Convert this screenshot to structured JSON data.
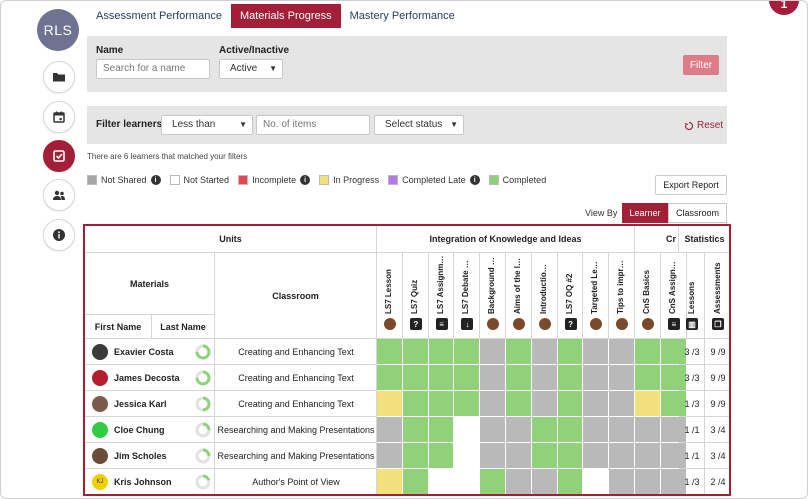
{
  "user": {
    "initials": "RLS"
  },
  "corner_badge": {
    "text": "1"
  },
  "tabs": [
    {
      "label": "Assessment Performance",
      "active": false
    },
    {
      "label": "Materials Progress",
      "active": true
    },
    {
      "label": "Mastery Performance",
      "active": false
    }
  ],
  "filters": {
    "name_label": "Name",
    "name_placeholder": "Search for a name",
    "active_label": "Active/Inactive",
    "active_value": "Active",
    "filter_button": "Filter",
    "learners_label": "Filter learners",
    "comparison_value": "Less than",
    "items_placeholder": "No. of items",
    "status_value": "Select status",
    "reset_label": "Reset"
  },
  "result_text": "There are 6 learners that matched your filters",
  "legend": [
    {
      "label": "Not Shared",
      "color": "#a6a6a6",
      "info": true
    },
    {
      "label": "Not Started",
      "color": "#ffffff",
      "info": false
    },
    {
      "label": "Incomplete",
      "color": "#e8474f",
      "info": true
    },
    {
      "label": "In Progress",
      "color": "#f2e07c",
      "info": false
    },
    {
      "label": "Completed Late",
      "color": "#b27ae8",
      "info": true
    },
    {
      "label": "Completed",
      "color": "#8fd27a",
      "info": false
    }
  ],
  "export_label": "Export Report",
  "view_by": {
    "label": "View By",
    "options": [
      "Learner",
      "Classroom"
    ],
    "selected": "Learner"
  },
  "table": {
    "units_header": "Units",
    "materials_header": "Materials",
    "classroom_header": "Classroom",
    "first_name_header": "First Name",
    "last_name_header": "Last Name",
    "group1_header": "Integration of Knowledge and Ideas",
    "group2_header": "Cr",
    "statistics_header": "Statistics",
    "columns": [
      {
        "label": "LS7 Lesson",
        "icon": "lesson"
      },
      {
        "label": "LS7 Quiz",
        "icon": "quiz"
      },
      {
        "label": "LS7 Assignm…",
        "icon": "assignment"
      },
      {
        "label": "LS7 Debate …",
        "icon": "download"
      },
      {
        "label": "Background …",
        "icon": "lesson"
      },
      {
        "label": "Aims of the l…",
        "icon": "lesson"
      },
      {
        "label": "Introductio…",
        "icon": "lesson"
      },
      {
        "label": "LS7 OQ #2",
        "icon": "quiz"
      },
      {
        "label": "Targeted Le…",
        "icon": "lesson"
      },
      {
        "label": "Tips to impr…",
        "icon": "lesson"
      },
      {
        "label": "CnS Basics",
        "icon": "lesson"
      },
      {
        "label": "CnS Assign…",
        "icon": "assignment"
      }
    ],
    "stat_columns": [
      {
        "label": "Lessons",
        "icon": "book"
      },
      {
        "label": "Assessments",
        "icon": "copy"
      }
    ],
    "rows": [
      {
        "name": "Exavier Costa",
        "classroom": "Creating and Enhancing Text",
        "lessons": "3 /3",
        "assessments": "9 /9",
        "progress": 0.75,
        "avatar": "#3b3b3b",
        "cells": [
          "C",
          "C",
          "C",
          "C",
          "S",
          "C",
          "S",
          "C",
          "S",
          "S",
          "C",
          "C"
        ]
      },
      {
        "name": "James Decosta",
        "classroom": "Creating and Enhancing Text",
        "lessons": "3 /3",
        "assessments": "9 /9",
        "progress": 0.75,
        "avatar": "#b3202c",
        "cells": [
          "C",
          "C",
          "C",
          "C",
          "S",
          "C",
          "S",
          "C",
          "S",
          "S",
          "C",
          "C"
        ]
      },
      {
        "name": "Jessica Karl",
        "classroom": "Creating and Enhancing Text",
        "lessons": "1 /3",
        "assessments": "9 /9",
        "progress": 0.5,
        "avatar": "#7a5a48",
        "cells": [
          "P",
          "C",
          "C",
          "C",
          "S",
          "C",
          "S",
          "C",
          "S",
          "S",
          "P",
          "C"
        ]
      },
      {
        "name": "Cloe Chung",
        "classroom": "Researching and Making Presentations",
        "lessons": "1 /1",
        "assessments": "3 /4",
        "progress": 0.25,
        "avatar": "#2ecc40",
        "cells": [
          "S",
          "C",
          "C",
          "N",
          "S",
          "S",
          "C",
          "C",
          "S",
          "S",
          "S",
          "S"
        ]
      },
      {
        "name": "Jim Scholes",
        "classroom": "Researching and Making Presentations",
        "lessons": "1 /1",
        "assessments": "3 /4",
        "progress": 0.25,
        "avatar": "#6b4c3b",
        "cells": [
          "S",
          "C",
          "C",
          "N",
          "S",
          "S",
          "C",
          "C",
          "S",
          "S",
          "S",
          "S"
        ]
      },
      {
        "name": "Kris Johnson",
        "classroom": "Author's Point of View",
        "lessons": "1 /3",
        "assessments": "2 /4",
        "progress": 0.2,
        "avatar": "#f2d000",
        "avatar_text": "KJ",
        "cells": [
          "P",
          "C",
          "N",
          "N",
          "C",
          "S",
          "S",
          "C",
          "N",
          "S",
          "S",
          "S"
        ]
      }
    ]
  }
}
